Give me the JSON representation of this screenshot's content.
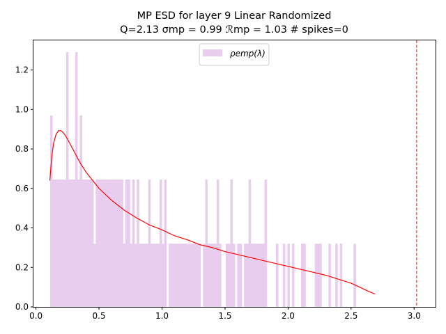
{
  "chart_data": {
    "type": "bar",
    "title_line1": "MP ESD for layer 9 Linear Randomized",
    "title_line2": "Q=2.13 σmp = 0.99 ℛmp = 1.03 # spikes=0",
    "xlabel": "",
    "ylabel": "",
    "xlim": [
      -0.02,
      3.17
    ],
    "ylim": [
      0,
      1.35
    ],
    "x_ticks": [
      0.0,
      0.5,
      1.0,
      1.5,
      2.0,
      2.5,
      3.0
    ],
    "x_tick_labels": [
      "0.0",
      "0.5",
      "1.0",
      "1.5",
      "2.0",
      "2.5",
      "3.0"
    ],
    "y_ticks": [
      0.0,
      0.2,
      0.4,
      0.6,
      0.8,
      1.0,
      1.2
    ],
    "y_tick_labels": [
      "0.0",
      "0.2",
      "0.4",
      "0.6",
      "0.8",
      "1.0",
      "1.2"
    ],
    "legend": {
      "label": "ρemp(λ)",
      "placement": "top-center"
    },
    "histogram": {
      "name": "ρemp(λ)",
      "color": "#e8cdee",
      "bin_start": 0.112,
      "bin_width": 0.0181,
      "values": [
        0.97,
        0.645,
        0.645,
        0.645,
        0.645,
        0.645,
        0.645,
        1.29,
        0.645,
        0.645,
        0.645,
        1.29,
        0.645,
        0.97,
        0.645,
        0.645,
        0.645,
        0.645,
        0.645,
        0.32,
        0.645,
        0.645,
        0.645,
        0.645,
        0.645,
        0.645,
        0.645,
        0.645,
        0.645,
        0.645,
        0.645,
        0.645,
        0.32,
        0.645,
        0.645,
        0.32,
        0.645,
        0.32,
        0.645,
        0.32,
        0.32,
        0.32,
        0.32,
        0.645,
        0.32,
        0.32,
        0.32,
        0.32,
        0.645,
        0.32,
        0.645,
        0.0,
        0.32,
        0.32,
        0.32,
        0.32,
        0.32,
        0.32,
        0.32,
        0.32,
        0.32,
        0.32,
        0.32,
        0.32,
        0.32,
        0.32,
        0.0,
        0.32,
        0.645,
        0.32,
        0.32,
        0.32,
        0.32,
        0.645,
        0.32,
        0.0,
        0.0,
        0.32,
        0.32,
        0.645,
        0.32,
        0.0,
        0.32,
        0.32,
        0.0,
        0.32,
        0.32,
        0.645,
        0.32,
        0.32,
        0.32,
        0.32,
        0.32,
        0.32,
        0.645,
        0.0,
        0.0,
        0.0,
        0.0,
        0.32,
        0.0,
        0.0,
        0.32,
        0.0,
        0.32,
        0.0,
        0.32,
        0.0,
        0.0,
        0.0,
        0.32,
        0.32,
        0.0,
        0.0,
        0.0,
        0.0,
        0.32,
        0.32,
        0.32,
        0.0,
        0.0,
        0.0,
        0.32,
        0.0,
        0.0,
        0.32,
        0.0,
        0.32,
        0.0,
        0.0,
        0.0,
        0.0,
        0.0,
        0.32
      ]
    },
    "series": [
      {
        "type": "line",
        "color": "#ff0000",
        "x": [
          0.11,
          0.125,
          0.14,
          0.16,
          0.18,
          0.2,
          0.22,
          0.25,
          0.3,
          0.35,
          0.4,
          0.5,
          0.6,
          0.7,
          0.8,
          0.9,
          1.0,
          1.1,
          1.2,
          1.3,
          1.4,
          1.5,
          1.6,
          1.7,
          1.8,
          1.9,
          2.0,
          2.1,
          2.2,
          2.3,
          2.4,
          2.5,
          2.55,
          2.6,
          2.65,
          2.69
        ],
        "y": [
          0.64,
          0.76,
          0.83,
          0.875,
          0.893,
          0.892,
          0.88,
          0.85,
          0.79,
          0.73,
          0.68,
          0.6,
          0.54,
          0.49,
          0.45,
          0.415,
          0.39,
          0.36,
          0.34,
          0.315,
          0.3,
          0.28,
          0.265,
          0.25,
          0.235,
          0.22,
          0.205,
          0.19,
          0.175,
          0.16,
          0.14,
          0.12,
          0.105,
          0.09,
          0.075,
          0.065
        ]
      }
    ],
    "vline": {
      "x": 3.02,
      "color": "#ff0000",
      "style": "dashed"
    },
    "grid": false
  }
}
